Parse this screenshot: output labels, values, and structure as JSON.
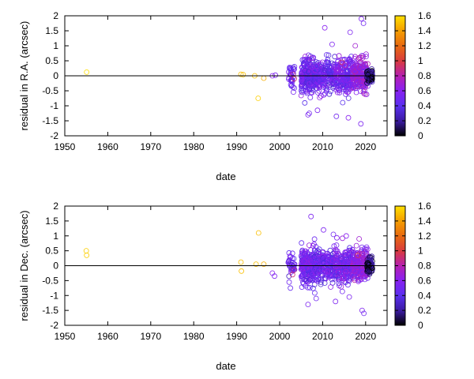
{
  "chart_data": [
    {
      "type": "scatter",
      "xlabel": "date",
      "ylabel": "residual in R.A. (arcsec)",
      "xlim": [
        1950,
        2025
      ],
      "ylim": [
        -2,
        2
      ],
      "xticks": [
        "1950",
        "1960",
        "1970",
        "1980",
        "1990",
        "2000",
        "2010",
        "2020"
      ],
      "yticks": [
        "-2",
        "-1.5",
        "-1",
        "-0.5",
        "0",
        "0.5",
        "1",
        "1.5",
        "2"
      ],
      "colorbar": {
        "min": 0,
        "max": 1.6,
        "ticks": [
          "0",
          "0.2",
          "0.4",
          "0.6",
          "0.8",
          "1",
          "1.2",
          "1.4",
          "1.6"
        ]
      },
      "zero_line": true,
      "marker": "open-circle",
      "points": [
        {
          "x": 1955.1,
          "y": 0.12,
          "c": 1.6
        },
        {
          "x": 1991.0,
          "y": 0.05,
          "c": 1.5
        },
        {
          "x": 1991.5,
          "y": 0.04,
          "c": 1.5
        },
        {
          "x": 1994.2,
          "y": 0.0,
          "c": 1.5
        },
        {
          "x": 1995.0,
          "y": -0.75,
          "c": 1.55
        },
        {
          "x": 1996.3,
          "y": -0.08,
          "c": 1.45
        },
        {
          "x": 1998.3,
          "y": 0.0,
          "c": 0.6
        },
        {
          "x": 1999.0,
          "y": 0.02,
          "c": 0.55
        },
        {
          "x": 2002.3,
          "y": 0.25,
          "c": 0.45
        },
        {
          "x": 2002.6,
          "y": -0.3,
          "c": 0.4
        },
        {
          "x": 2003.1,
          "y": 0.05,
          "c": 0.85
        },
        {
          "x": 2003.4,
          "y": -0.1,
          "c": 0.9
        },
        {
          "x": 2006.6,
          "y": -1.3,
          "c": 0.55
        },
        {
          "x": 2006.9,
          "y": -1.25,
          "c": 0.5
        },
        {
          "x": 2008.8,
          "y": -1.15,
          "c": 0.55
        },
        {
          "x": 2010.5,
          "y": 1.6,
          "c": 0.6
        },
        {
          "x": 2012.2,
          "y": 1.05,
          "c": 0.55
        },
        {
          "x": 2013.2,
          "y": -1.35,
          "c": 0.5
        },
        {
          "x": 2014.5,
          "y": 0.45,
          "c": 0.95
        },
        {
          "x": 2015.2,
          "y": 0.35,
          "c": 0.8
        },
        {
          "x": 2016.4,
          "y": 1.45,
          "c": 0.55
        },
        {
          "x": 2016.0,
          "y": -1.4,
          "c": 0.6
        },
        {
          "x": 2017.6,
          "y": 1.0,
          "c": 0.7
        },
        {
          "x": 2018.5,
          "y": 0.6,
          "c": 0.75
        },
        {
          "x": 2019.0,
          "y": 1.9,
          "c": 0.55
        },
        {
          "x": 2019.5,
          "y": 1.75,
          "c": 0.5
        },
        {
          "x": 2018.9,
          "y": -1.6,
          "c": 0.55
        },
        {
          "x": 2020.5,
          "y": 0.4,
          "c": 0.75
        }
      ],
      "clusters": [
        {
          "x": [
            2002.0,
            2003.5
          ],
          "y_spread": 0.35,
          "c": 0.45,
          "n": 35
        },
        {
          "x": [
            2005.0,
            2008.0
          ],
          "y_spread": 0.55,
          "c": 0.5,
          "n": 220
        },
        {
          "x": [
            2008.0,
            2013.0
          ],
          "y_spread": 0.5,
          "c": 0.48,
          "n": 240
        },
        {
          "x": [
            2013.0,
            2017.0
          ],
          "y_spread": 0.5,
          "c": 0.52,
          "n": 220
        },
        {
          "x": [
            2017.0,
            2020.5
          ],
          "y_spread": 0.45,
          "c": 0.65,
          "n": 260
        },
        {
          "x": [
            2020.3,
            2021.6
          ],
          "y_spread": 0.2,
          "c": 0.12,
          "n": 90
        }
      ]
    },
    {
      "type": "scatter",
      "xlabel": "date",
      "ylabel": "residual in Dec. (arcsec)",
      "xlim": [
        1950,
        2025
      ],
      "ylim": [
        -2,
        2
      ],
      "xticks": [
        "1950",
        "1960",
        "1970",
        "1980",
        "1990",
        "2000",
        "2010",
        "2020"
      ],
      "yticks": [
        "-2",
        "-1.5",
        "-1",
        "-0.5",
        "0",
        "0.5",
        "1",
        "1.5",
        "2"
      ],
      "colorbar": {
        "min": 0,
        "max": 1.6,
        "ticks": [
          "0",
          "0.2",
          "0.4",
          "0.6",
          "0.8",
          "1",
          "1.2",
          "1.4",
          "1.6"
        ]
      },
      "zero_line": true,
      "marker": "open-circle",
      "points": [
        {
          "x": 1955.0,
          "y": 0.5,
          "c": 1.55
        },
        {
          "x": 1955.1,
          "y": 0.35,
          "c": 1.55
        },
        {
          "x": 1991.0,
          "y": 0.12,
          "c": 1.5
        },
        {
          "x": 1991.1,
          "y": -0.18,
          "c": 1.5
        },
        {
          "x": 1994.5,
          "y": 0.05,
          "c": 1.5
        },
        {
          "x": 1995.1,
          "y": 1.1,
          "c": 1.5
        },
        {
          "x": 1996.3,
          "y": 0.05,
          "c": 1.45
        },
        {
          "x": 1998.3,
          "y": -0.25,
          "c": 0.6
        },
        {
          "x": 1998.8,
          "y": -0.35,
          "c": 0.55
        },
        {
          "x": 2002.2,
          "y": -0.55,
          "c": 0.5
        },
        {
          "x": 2002.5,
          "y": -0.75,
          "c": 0.45
        },
        {
          "x": 2003.0,
          "y": -0.3,
          "c": 0.9
        },
        {
          "x": 2003.3,
          "y": -0.15,
          "c": 0.85
        },
        {
          "x": 2006.6,
          "y": -1.3,
          "c": 0.55
        },
        {
          "x": 2007.3,
          "y": 1.65,
          "c": 0.55
        },
        {
          "x": 2008.5,
          "y": -1.1,
          "c": 0.5
        },
        {
          "x": 2010.2,
          "y": 1.2,
          "c": 0.55
        },
        {
          "x": 2012.5,
          "y": 1.05,
          "c": 0.5
        },
        {
          "x": 2013.0,
          "y": -1.2,
          "c": 0.55
        },
        {
          "x": 2015.5,
          "y": 1.0,
          "c": 0.6
        },
        {
          "x": 2016.2,
          "y": -1.05,
          "c": 0.55
        },
        {
          "x": 2018.5,
          "y": 0.9,
          "c": 0.7
        },
        {
          "x": 2019.2,
          "y": -1.5,
          "c": 0.55
        },
        {
          "x": 2019.6,
          "y": -1.6,
          "c": 0.5
        },
        {
          "x": 2018.2,
          "y": 0.35,
          "c": 0.95
        }
      ],
      "clusters": [
        {
          "x": [
            2002.0,
            2003.5
          ],
          "y_spread": 0.35,
          "c": 0.45,
          "n": 35
        },
        {
          "x": [
            2005.0,
            2008.0
          ],
          "y_spread": 0.55,
          "c": 0.5,
          "n": 220
        },
        {
          "x": [
            2008.0,
            2013.0
          ],
          "y_spread": 0.5,
          "c": 0.48,
          "n": 240
        },
        {
          "x": [
            2013.0,
            2017.0
          ],
          "y_spread": 0.5,
          "c": 0.52,
          "n": 220
        },
        {
          "x": [
            2017.0,
            2020.5
          ],
          "y_spread": 0.45,
          "c": 0.65,
          "n": 260
        },
        {
          "x": [
            2020.3,
            2021.6
          ],
          "y_spread": 0.2,
          "c": 0.12,
          "n": 90
        }
      ]
    }
  ]
}
